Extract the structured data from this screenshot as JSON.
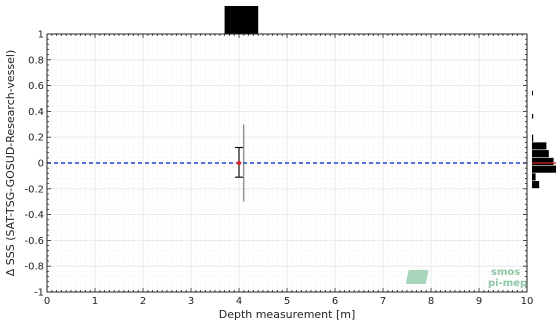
{
  "chart_data": {
    "type": "scatter",
    "title": "",
    "xlabel": "Depth measurement [m]",
    "ylabel": "Δ SSS (SAT-TSG-GOSUD-Research-vessel)",
    "xlim": [
      0,
      10
    ],
    "ylim": [
      -1,
      1
    ],
    "x_ticks": [
      "0",
      "1",
      "2",
      "3",
      "4",
      "5",
      "6",
      "7",
      "8",
      "9",
      "10"
    ],
    "y_ticks": [
      "-1",
      "-0.8",
      "-0.6",
      "-0.4",
      "-0.2",
      "0",
      "0.2",
      "0.4",
      "0.6",
      "0.8",
      "1"
    ],
    "grid": true,
    "reference_line": {
      "y": 0,
      "style": "dashed",
      "color": "#1f3fd6"
    },
    "points": [
      {
        "x": 4.0,
        "y": 0.0,
        "color": "#d62728"
      }
    ],
    "errorbars": [
      {
        "x": 4.0,
        "mean": 0.0,
        "low": -0.11,
        "high": 0.12,
        "color": "#111111"
      }
    ],
    "ranges": [
      {
        "x": 4.1,
        "low": -0.3,
        "high": 0.3,
        "color": "#555555"
      }
    ],
    "x_histogram": [
      {
        "x0": 3.7,
        "x1": 4.4,
        "value": 1.0
      }
    ],
    "y_histogram": [
      {
        "y0": -0.2,
        "y1": -0.14,
        "value": 0.3
      },
      {
        "y0": -0.14,
        "y1": -0.08,
        "value": 0.15
      },
      {
        "y0": -0.08,
        "y1": -0.02,
        "value": 1.0
      },
      {
        "y0": -0.02,
        "y1": 0.04,
        "value": 0.9
      },
      {
        "y0": 0.04,
        "y1": 0.1,
        "value": 0.7
      },
      {
        "y0": 0.1,
        "y1": 0.16,
        "value": 0.6
      },
      {
        "y0": 0.16,
        "y1": 0.22,
        "value": 0.05
      },
      {
        "y0": 0.34,
        "y1": 0.38,
        "value": 0.05
      },
      {
        "y0": 0.52,
        "y1": 0.56,
        "value": 0.04
      }
    ],
    "y_histogram_marker": {
      "y": 0.0,
      "color": "#d62728"
    },
    "colors": {
      "grid": "#e6e6e6",
      "axis": "#222222",
      "bar": "#000000"
    }
  },
  "logo": {
    "line1": "smos",
    "line2": "pi-mep",
    "color": "#8fc7a6"
  }
}
